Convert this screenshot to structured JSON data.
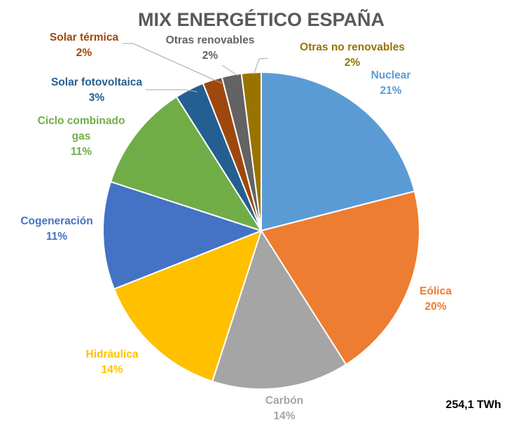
{
  "chart_data": {
    "type": "pie",
    "title": "MIX ENERGÉTICO ESPAÑA",
    "total_label": "254,1 TWh",
    "slices": [
      {
        "name": "Nuclear",
        "percent_label": "21%",
        "value": 21,
        "color": "#5B9BD5"
      },
      {
        "name": "Eólica",
        "percent_label": "20%",
        "value": 20,
        "color": "#ED7D31"
      },
      {
        "name": "Carbón",
        "percent_label": "14%",
        "value": 14,
        "color": "#A5A5A5"
      },
      {
        "name": "Hidráulica",
        "percent_label": "14%",
        "value": 14,
        "color": "#FFC000"
      },
      {
        "name": "Cogeneración",
        "percent_label": "11%",
        "value": 11,
        "color": "#4472C4"
      },
      {
        "name": "Ciclo combinado gas",
        "name_lines": [
          "Ciclo combinado",
          "gas"
        ],
        "percent_label": "11%",
        "value": 11,
        "color": "#70AD47"
      },
      {
        "name": "Solar fotovoltaica",
        "percent_label": "3%",
        "value": 3,
        "color": "#255E91"
      },
      {
        "name": "Solar térmica",
        "percent_label": "2%",
        "value": 2,
        "color": "#9E480E"
      },
      {
        "name": "Otras renovables",
        "percent_label": "2%",
        "value": 2,
        "color": "#636363"
      },
      {
        "name": "Otras no renovables",
        "percent_label": "2%",
        "value": 2,
        "color": "#997300"
      }
    ]
  }
}
